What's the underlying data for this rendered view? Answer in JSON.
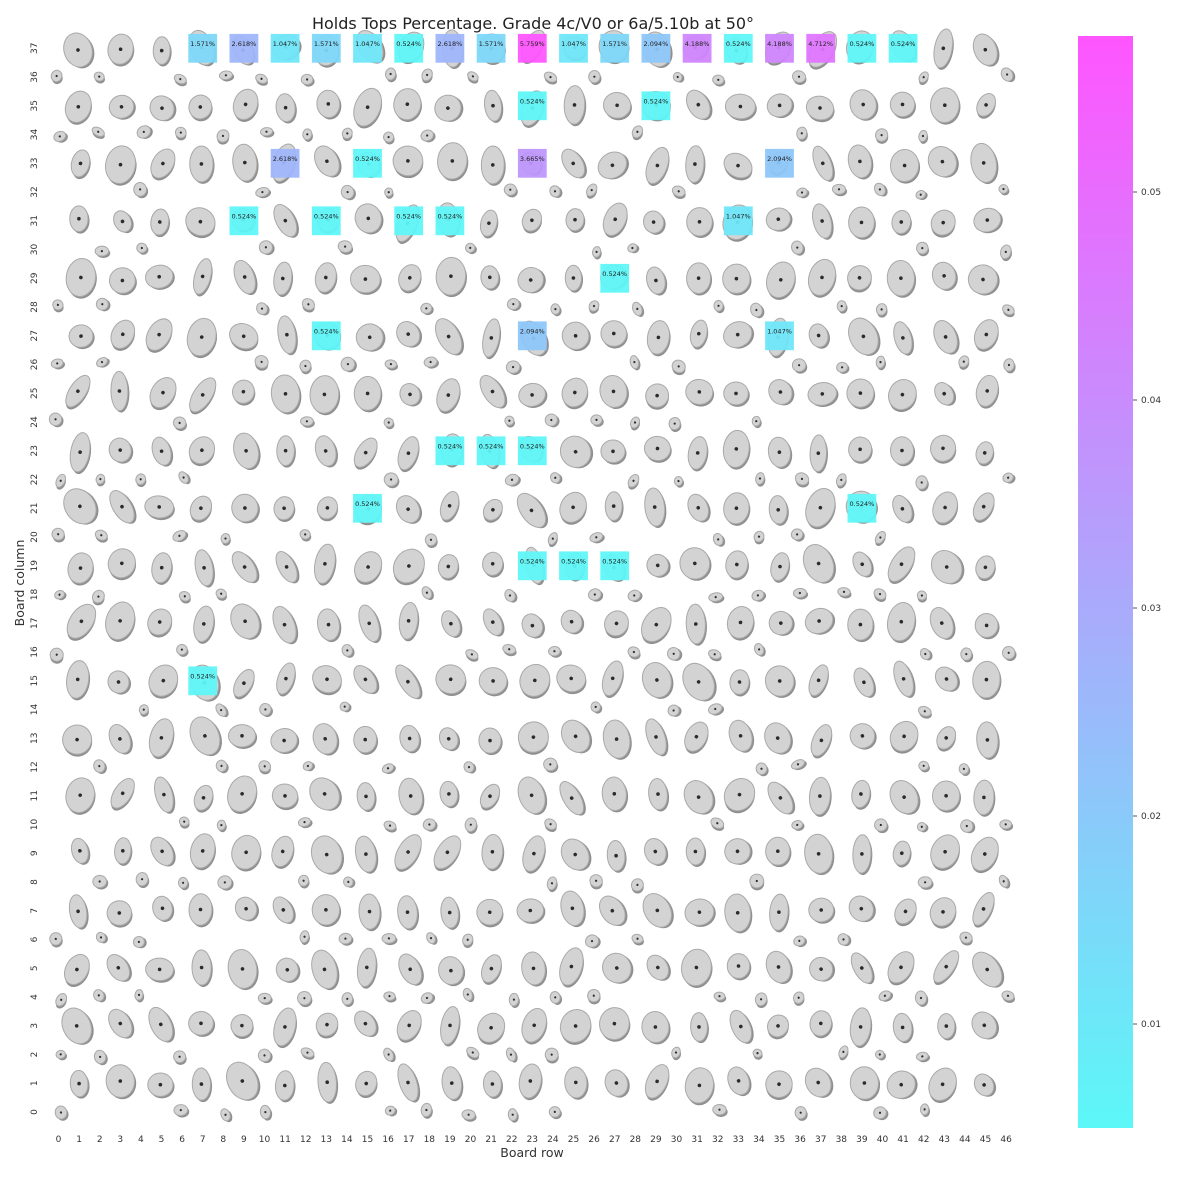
{
  "chart_data": {
    "type": "heatmap",
    "title": "Holds Tops Percentage. Grade 4c/V0 or 6a/5.10b at 50°",
    "xlabel": "Board row",
    "ylabel": "Board column",
    "x_ticks": [
      "0",
      "1",
      "2",
      "3",
      "4",
      "5",
      "6",
      "7",
      "8",
      "9",
      "10",
      "11",
      "12",
      "13",
      "14",
      "15",
      "16",
      "17",
      "18",
      "19",
      "20",
      "21",
      "22",
      "23",
      "24",
      "25",
      "26",
      "27",
      "28",
      "29",
      "30",
      "31",
      "32",
      "33",
      "34",
      "35",
      "36",
      "37",
      "38",
      "39",
      "40",
      "41",
      "42",
      "43",
      "44",
      "45",
      "46"
    ],
    "y_ticks": [
      "0",
      "1",
      "2",
      "3",
      "4",
      "5",
      "6",
      "7",
      "8",
      "9",
      "10",
      "11",
      "12",
      "13",
      "14",
      "15",
      "16",
      "17",
      "18",
      "19",
      "20",
      "21",
      "22",
      "23",
      "24",
      "25",
      "26",
      "27",
      "28",
      "29",
      "30",
      "31",
      "32",
      "33",
      "34",
      "35",
      "36",
      "37"
    ],
    "colormap": [
      "#5cf8f8",
      "#ff55ff"
    ],
    "colorbar": {
      "ticks": [
        "0.01",
        "0.02",
        "0.03",
        "0.04",
        "0.05"
      ],
      "vmin": 0.005,
      "vmax": 0.0575
    },
    "cells": [
      {
        "x": 7,
        "y": 37,
        "value": 0.01571,
        "label": "1.571%"
      },
      {
        "x": 9,
        "y": 37,
        "value": 0.02618,
        "label": "2.618%"
      },
      {
        "x": 11,
        "y": 37,
        "value": 0.01047,
        "label": "1.047%"
      },
      {
        "x": 13,
        "y": 37,
        "value": 0.01571,
        "label": "1.571%"
      },
      {
        "x": 15,
        "y": 37,
        "value": 0.01047,
        "label": "1.047%"
      },
      {
        "x": 17,
        "y": 37,
        "value": 0.00524,
        "label": "0.524%"
      },
      {
        "x": 19,
        "y": 37,
        "value": 0.02618,
        "label": "2.618%"
      },
      {
        "x": 21,
        "y": 37,
        "value": 0.01571,
        "label": "1.571%"
      },
      {
        "x": 23,
        "y": 37,
        "value": 0.05759,
        "label": "5.759%"
      },
      {
        "x": 25,
        "y": 37,
        "value": 0.01047,
        "label": "1.047%"
      },
      {
        "x": 27,
        "y": 37,
        "value": 0.01571,
        "label": "1.571%"
      },
      {
        "x": 29,
        "y": 37,
        "value": 0.02094,
        "label": "2.094%"
      },
      {
        "x": 31,
        "y": 37,
        "value": 0.04188,
        "label": "4.188%"
      },
      {
        "x": 33,
        "y": 37,
        "value": 0.00524,
        "label": "0.524%"
      },
      {
        "x": 35,
        "y": 37,
        "value": 0.04188,
        "label": "4.188%"
      },
      {
        "x": 37,
        "y": 37,
        "value": 0.04712,
        "label": "4.712%"
      },
      {
        "x": 39,
        "y": 37,
        "value": 0.00524,
        "label": "0.524%"
      },
      {
        "x": 41,
        "y": 37,
        "value": 0.00524,
        "label": "0.524%"
      },
      {
        "x": 23,
        "y": 35,
        "value": 0.00524,
        "label": "0.524%"
      },
      {
        "x": 29,
        "y": 35,
        "value": 0.00524,
        "label": "0.524%"
      },
      {
        "x": 11,
        "y": 33,
        "value": 0.02618,
        "label": "2.618%"
      },
      {
        "x": 15,
        "y": 33,
        "value": 0.00524,
        "label": "0.524%"
      },
      {
        "x": 23,
        "y": 33,
        "value": 0.03665,
        "label": "3.665%"
      },
      {
        "x": 35,
        "y": 33,
        "value": 0.02094,
        "label": "2.094%"
      },
      {
        "x": 9,
        "y": 31,
        "value": 0.00524,
        "label": "0.524%"
      },
      {
        "x": 13,
        "y": 31,
        "value": 0.00524,
        "label": "0.524%"
      },
      {
        "x": 17,
        "y": 31,
        "value": 0.00524,
        "label": "0.524%"
      },
      {
        "x": 19,
        "y": 31,
        "value": 0.00524,
        "label": "0.524%"
      },
      {
        "x": 33,
        "y": 31,
        "value": 0.01047,
        "label": "1.047%"
      },
      {
        "x": 27,
        "y": 29,
        "value": 0.00524,
        "label": "0.524%"
      },
      {
        "x": 13,
        "y": 27,
        "value": 0.00524,
        "label": "0.524%"
      },
      {
        "x": 23,
        "y": 27,
        "value": 0.02094,
        "label": "2.094%"
      },
      {
        "x": 35,
        "y": 27,
        "value": 0.01047,
        "label": "1.047%"
      },
      {
        "x": 19,
        "y": 23,
        "value": 0.00524,
        "label": "0.524%"
      },
      {
        "x": 21,
        "y": 23,
        "value": 0.00524,
        "label": "0.524%"
      },
      {
        "x": 23,
        "y": 23,
        "value": 0.00524,
        "label": "0.524%"
      },
      {
        "x": 15,
        "y": 21,
        "value": 0.00524,
        "label": "0.524%"
      },
      {
        "x": 39,
        "y": 21,
        "value": 0.00524,
        "label": "0.524%"
      },
      {
        "x": 23,
        "y": 19,
        "value": 0.00524,
        "label": "0.524%"
      },
      {
        "x": 25,
        "y": 19,
        "value": 0.00524,
        "label": "0.524%"
      },
      {
        "x": 27,
        "y": 19,
        "value": 0.00524,
        "label": "0.524%"
      },
      {
        "x": 7,
        "y": 15,
        "value": 0.00524,
        "label": "0.524%"
      }
    ]
  }
}
